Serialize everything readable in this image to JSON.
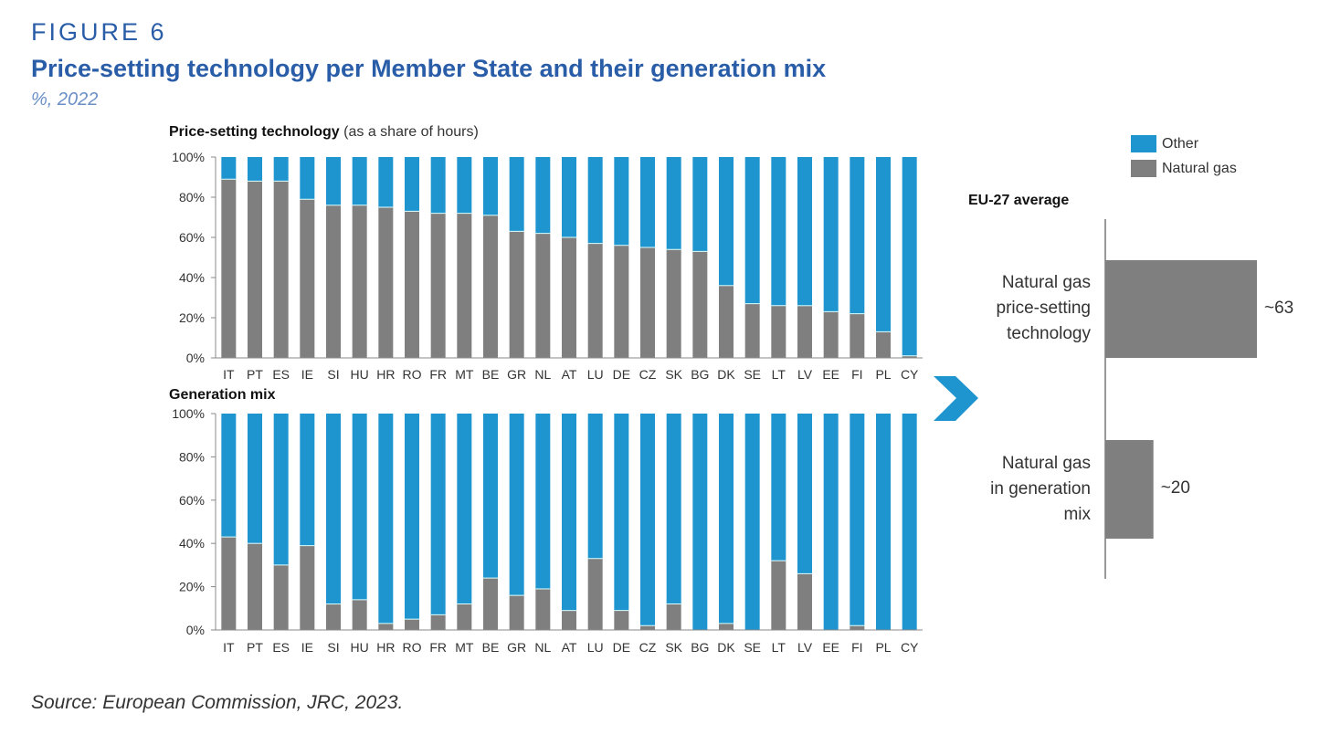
{
  "header": {
    "figure_label": "FIGURE 6",
    "title": "Price-setting technology per Member State and their generation mix",
    "subtitle": "%, 2022"
  },
  "footer": {
    "source": "Source: European Commission, JRC, 2023."
  },
  "colors": {
    "natural_gas": "#7f7f7f",
    "other": "#1f95cf",
    "accent": "#2a5da8"
  },
  "legend": {
    "other": "Other",
    "natural_gas": "Natural gas"
  },
  "chart_data": [
    {
      "type": "bar",
      "stacked": true,
      "title": "Price-setting technology",
      "title_suffix": "(as a share of hours)",
      "ylim": [
        0,
        100
      ],
      "yticks": [
        "0%",
        "20%",
        "40%",
        "60%",
        "80%",
        "100%"
      ],
      "categories": [
        "IT",
        "PT",
        "ES",
        "IE",
        "SI",
        "HU",
        "HR",
        "RO",
        "FR",
        "MT",
        "BE",
        "GR",
        "NL",
        "AT",
        "LU",
        "DE",
        "CZ",
        "SK",
        "BG",
        "DK",
        "SE",
        "LT",
        "LV",
        "EE",
        "FI",
        "PL",
        "CY"
      ],
      "series": [
        {
          "name": "Natural gas",
          "values": [
            89,
            88,
            88,
            79,
            76,
            76,
            75,
            73,
            72,
            72,
            71,
            63,
            62,
            60,
            57,
            56,
            55,
            54,
            53,
            36,
            27,
            26,
            26,
            23,
            22,
            13,
            1
          ]
        },
        {
          "name": "Other",
          "values": [
            11,
            12,
            12,
            21,
            24,
            24,
            25,
            27,
            28,
            28,
            29,
            37,
            38,
            40,
            43,
            44,
            45,
            46,
            47,
            64,
            73,
            74,
            74,
            77,
            78,
            87,
            99
          ]
        }
      ]
    },
    {
      "type": "bar",
      "stacked": true,
      "title": "Generation mix",
      "ylim": [
        0,
        100
      ],
      "yticks": [
        "0%",
        "20%",
        "40%",
        "60%",
        "80%",
        "100%"
      ],
      "categories": [
        "IT",
        "PT",
        "ES",
        "IE",
        "SI",
        "HU",
        "HR",
        "RO",
        "FR",
        "MT",
        "BE",
        "GR",
        "NL",
        "AT",
        "LU",
        "DE",
        "CZ",
        "SK",
        "BG",
        "DK",
        "SE",
        "LT",
        "LV",
        "EE",
        "FI",
        "PL",
        "CY"
      ],
      "series": [
        {
          "name": "Natural gas",
          "values": [
            43,
            40,
            30,
            39,
            12,
            14,
            3,
            5,
            7,
            12,
            24,
            16,
            19,
            9,
            33,
            9,
            2,
            12,
            0,
            3,
            0,
            32,
            26,
            0,
            2,
            0,
            0
          ]
        },
        {
          "name": "Other",
          "values": [
            57,
            60,
            70,
            61,
            88,
            86,
            97,
            95,
            93,
            88,
            76,
            84,
            81,
            91,
            67,
            91,
            98,
            88,
            100,
            97,
            100,
            68,
            74,
            100,
            98,
            100,
            100
          ]
        }
      ]
    },
    {
      "type": "bar",
      "orientation": "horizontal",
      "title": "EU-27 average",
      "categories": [
        "Natural gas price-setting technology",
        "Natural gas in generation mix"
      ],
      "category_lines": [
        [
          "Natural gas",
          "price-setting",
          "technology"
        ],
        [
          "Natural gas",
          "in generation",
          "mix"
        ]
      ],
      "values": [
        63,
        20
      ],
      "data_labels": [
        "~63",
        "~20"
      ]
    }
  ]
}
